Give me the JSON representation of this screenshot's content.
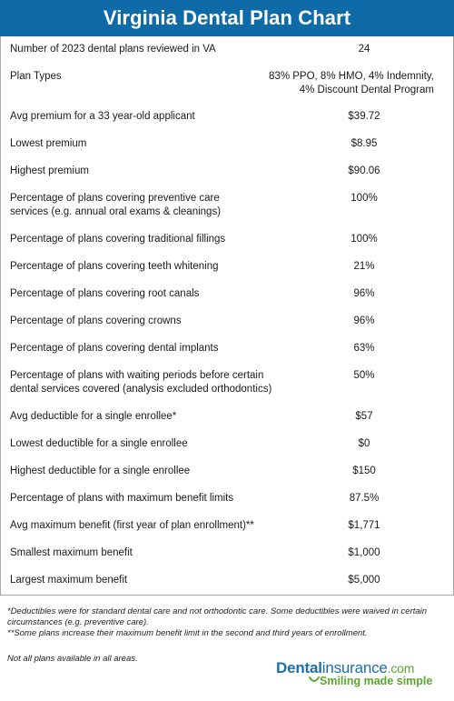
{
  "title": "Virginia Dental Plan Chart",
  "colors": {
    "header_bg": "#0f6aa8",
    "brand_blue": "#1b6fad",
    "brand_green": "#5aa72e",
    "border": "#a9a9a9"
  },
  "rows": [
    {
      "label": [
        "Number of 2023 dental plans reviewed in VA"
      ],
      "value": [
        "24"
      ]
    },
    {
      "label": [
        "Plan Types"
      ],
      "value": [
        "83% PPO,  8% HMO, 4% Indemnity,",
        "4% Discount Dental Program"
      ],
      "align": "right"
    },
    {
      "label": [
        "Avg premium for a 33 year-old applicant"
      ],
      "value": [
        "$39.72"
      ]
    },
    {
      "label": [
        "Lowest premium"
      ],
      "value": [
        "$8.95"
      ]
    },
    {
      "label": [
        "Highest premium"
      ],
      "value": [
        "$90.06"
      ]
    },
    {
      "label": [
        "Percentage of plans covering preventive care",
        "services (e.g. annual oral exams & cleanings)"
      ],
      "value": [
        "100%"
      ]
    },
    {
      "label": [
        "Percentage of plans covering traditional fillings"
      ],
      "value": [
        "100%"
      ]
    },
    {
      "label": [
        "Percentage of plans covering teeth whitening"
      ],
      "value": [
        "21%"
      ]
    },
    {
      "label": [
        "Percentage of plans covering root canals"
      ],
      "value": [
        "96%"
      ]
    },
    {
      "label": [
        "Percentage of plans covering crowns"
      ],
      "value": [
        "96%"
      ]
    },
    {
      "label": [
        "Percentage of plans covering dental implants"
      ],
      "value": [
        "63%"
      ]
    },
    {
      "label": [
        "Percentage of plans with waiting periods before certain",
        "dental services covered (analysis excluded orthodontics)"
      ],
      "value": [
        "50%"
      ]
    },
    {
      "label": [
        "Avg deductible for a single enrollee*"
      ],
      "value": [
        "$57"
      ]
    },
    {
      "label": [
        "Lowest deductible for a single enrollee"
      ],
      "value": [
        "$0"
      ]
    },
    {
      "label": [
        "Highest deductible for a single enrollee"
      ],
      "value": [
        "$150"
      ]
    },
    {
      "label": [
        "Percentage of plans with maximum benefit limits"
      ],
      "value": [
        "87.5%"
      ]
    },
    {
      "label": [
        "Avg maximum benefit (first year of plan enrollment)**"
      ],
      "value": [
        "$1,771"
      ]
    },
    {
      "label": [
        "Smallest maximum benefit"
      ],
      "value": [
        "$1,000"
      ]
    },
    {
      "label": [
        "Largest maximum benefit"
      ],
      "value": [
        "$5,000"
      ]
    }
  ],
  "footnotes": [
    "*Deductibles were for standard dental care and not orthodontic care. Some deductibles were waived in certain",
    "circumstances (e.g. preventive care).",
    "**Some plans increase their maximum benefit limit in the second and third years of enrollment."
  ],
  "availability_note": "Not all plans available in all areas.",
  "logo": {
    "word_part1": "Dental",
    "word_part2": "insurance",
    "word_part3": ".com",
    "tagline": "Smiling made simple"
  }
}
